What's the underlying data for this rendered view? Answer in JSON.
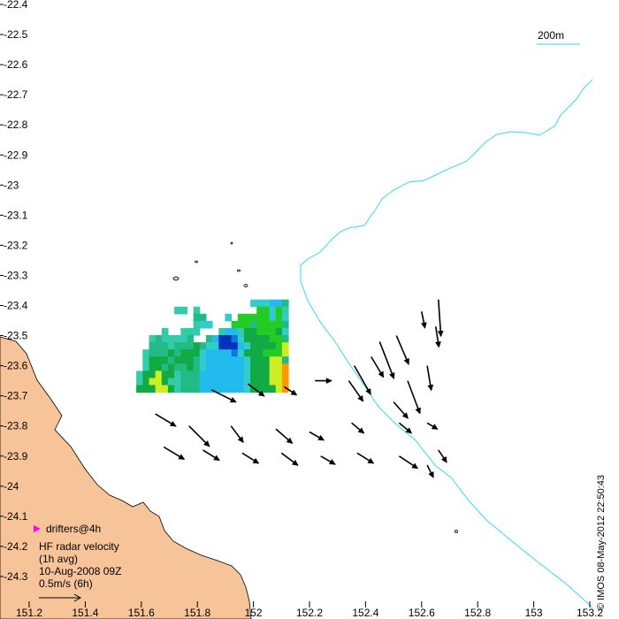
{
  "map": {
    "lat_ticks": [
      "-22.4",
      "-22.5",
      "-22.6",
      "-22.7",
      "-22.8",
      "-22.9",
      "-23",
      "-23.1",
      "-23.2",
      "-23.3",
      "-23.4",
      "-23.5",
      "-23.6",
      "-23.7",
      "-23.8",
      "-23.9",
      "-24",
      "-24.1",
      "-24.2",
      "-24.3"
    ],
    "lon_ticks": [
      "151.2",
      "151.4",
      "151.6",
      "151.8",
      "152",
      "152.2",
      "152.4",
      "152.6",
      "152.8",
      "153",
      "153.2"
    ],
    "lon_range": [
      151.2,
      153.2
    ],
    "lat_range": [
      -22.4,
      -24.36
    ],
    "scale_label": "200m",
    "copyright": "© IMOS 08-May-2012 22:50:43",
    "colors": {
      "land": "#f7c499",
      "isobath": "#33ddee",
      "drifter": "#ff00ff",
      "arrow": "#000000"
    }
  },
  "legend": {
    "drifters_label": "drifters@4h",
    "title_line1": "HF radar velocity",
    "title_line2": "(1h avg)",
    "date": "10-Aug-2008 09Z",
    "scale_label": "0.5m/s (6h)"
  },
  "velocity_grid": {
    "lon_start": 151.6,
    "lat_start": -23.38,
    "cell_lon": 0.0226,
    "cell_lat": 0.0237,
    "rows": [
      "...................sssSSc",
      "........tt.t.........GGsGt",
      "..........cc...s.GGGGGsGs",
      "...........tss...GGGcGGGGc",
      ".....t..ttt...tSStggGGGgs",
      "...tcttttc..cSBBbsggggGGc",
      "...ccctcccgcssBBBSsggggGY",
      "..tcccgcgggsSSSSbsgggGGGY",
      "..tgggcgggcsSSSSSSsgggYYc",
      "..tggcgccgcsSSSSSSsgggYYo",
      "tggYggtcccSSSSSSSsgggYYo",
      "tgYYgttcccSSSSSSSsgggYYo",
      "gggYYgtcccSSSSSSSsggggYo"
    ],
    "palette": {
      "t": "#33ccaa",
      "c": "#22bb88",
      "g": "#11aa44",
      "G": "#22cc22",
      "s": "#33cccc",
      "S": "#22bbee",
      "b": "#1177dd",
      "B": "#0033bb",
      "Y": "#ccee22",
      "y": "#eeee11",
      "o": "#ff9900"
    }
  },
  "vectors": [
    {
      "lon": 152.66,
      "lat": -23.38,
      "u": 0.06,
      "v": -0.9
    },
    {
      "lon": 152.6,
      "lat": -23.42,
      "u": 0.08,
      "v": -0.4
    },
    {
      "lon": 152.45,
      "lat": -23.52,
      "u": 0.35,
      "v": -0.9
    },
    {
      "lon": 152.51,
      "lat": -23.5,
      "u": 0.3,
      "v": -0.7
    },
    {
      "lon": 152.65,
      "lat": -23.47,
      "u": 0.08,
      "v": -0.5
    },
    {
      "lon": 152.36,
      "lat": -23.6,
      "u": 0.4,
      "v": -0.7
    },
    {
      "lon": 152.42,
      "lat": -23.57,
      "u": 0.3,
      "v": -0.5
    },
    {
      "lon": 152.55,
      "lat": -23.65,
      "u": 0.3,
      "v": -0.8
    },
    {
      "lon": 152.62,
      "lat": -23.6,
      "u": 0.1,
      "v": -0.6
    },
    {
      "lon": 152.22,
      "lat": -23.65,
      "u": 0.4,
      "v": 0.0
    },
    {
      "lon": 152.34,
      "lat": -23.65,
      "u": 0.35,
      "v": -0.5
    },
    {
      "lon": 151.85,
      "lat": -23.68,
      "u": 0.6,
      "v": -0.3
    },
    {
      "lon": 151.98,
      "lat": -23.66,
      "u": 0.4,
      "v": -0.3
    },
    {
      "lon": 152.11,
      "lat": -23.67,
      "u": 0.3,
      "v": -0.2
    },
    {
      "lon": 152.5,
      "lat": -23.72,
      "u": 0.35,
      "v": -0.4
    },
    {
      "lon": 152.62,
      "lat": -23.79,
      "u": 0.25,
      "v": -0.15
    },
    {
      "lon": 151.65,
      "lat": -23.76,
      "u": 0.5,
      "v": -0.3
    },
    {
      "lon": 151.77,
      "lat": -23.8,
      "u": 0.5,
      "v": -0.5
    },
    {
      "lon": 151.92,
      "lat": -23.8,
      "u": 0.3,
      "v": -0.4
    },
    {
      "lon": 152.08,
      "lat": -23.81,
      "u": 0.4,
      "v": -0.35
    },
    {
      "lon": 152.2,
      "lat": -23.82,
      "u": 0.35,
      "v": -0.2
    },
    {
      "lon": 152.35,
      "lat": -23.79,
      "u": 0.3,
      "v": -0.25
    },
    {
      "lon": 152.52,
      "lat": -23.79,
      "u": 0.3,
      "v": -0.25
    },
    {
      "lon": 151.68,
      "lat": -23.87,
      "u": 0.5,
      "v": -0.3
    },
    {
      "lon": 151.82,
      "lat": -23.88,
      "u": 0.4,
      "v": -0.25
    },
    {
      "lon": 151.96,
      "lat": -23.89,
      "u": 0.4,
      "v": -0.25
    },
    {
      "lon": 152.1,
      "lat": -23.89,
      "u": 0.4,
      "v": -0.3
    },
    {
      "lon": 152.24,
      "lat": -23.9,
      "u": 0.35,
      "v": -0.2
    },
    {
      "lon": 152.37,
      "lat": -23.89,
      "u": 0.4,
      "v": -0.25
    },
    {
      "lon": 152.52,
      "lat": -23.9,
      "u": 0.45,
      "v": -0.3
    },
    {
      "lon": 152.66,
      "lat": -23.88,
      "u": 0.2,
      "v": -0.3
    },
    {
      "lon": 152.62,
      "lat": -23.93,
      "u": 0.15,
      "v": -0.3
    }
  ]
}
